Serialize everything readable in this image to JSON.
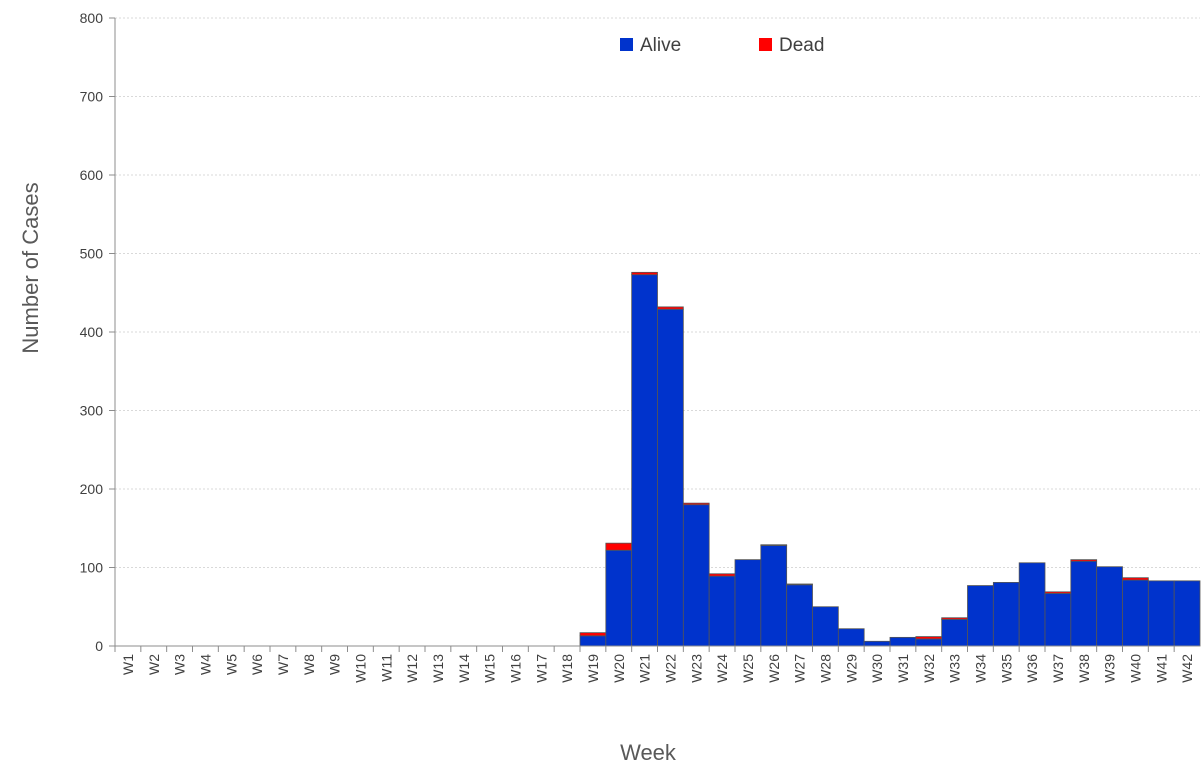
{
  "chart_data": {
    "type": "bar",
    "stacked": true,
    "title": "",
    "xlabel": "Week",
    "ylabel": "Number of Cases",
    "ylim": [
      0,
      800
    ],
    "yticks": [
      "0",
      "100",
      "200",
      "300",
      "400",
      "500",
      "600",
      "700",
      "800"
    ],
    "grid": true,
    "legend_position": "top-center",
    "categories": [
      "W1",
      "W2",
      "W3",
      "W4",
      "W5",
      "W6",
      "W7",
      "W8",
      "W9",
      "W10",
      "W11",
      "W12",
      "W13",
      "W14",
      "W15",
      "W16",
      "W17",
      "W18",
      "W19",
      "W20",
      "W21",
      "W22",
      "W23",
      "W24",
      "W25",
      "W26",
      "W27",
      "W28",
      "W29",
      "W30",
      "W31",
      "W32",
      "W33",
      "W34",
      "W35",
      "W36",
      "W37",
      "W38",
      "W39",
      "W40",
      "W41",
      "W42"
    ],
    "series": [
      {
        "name": "Alive",
        "color": "#0033cc",
        "values": [
          0,
          0,
          0,
          0,
          0,
          0,
          0,
          0,
          0,
          0,
          0,
          0,
          0,
          0,
          0,
          0,
          0,
          0,
          13,
          122,
          473,
          429,
          180,
          89,
          110,
          128,
          78,
          50,
          22,
          6,
          11,
          9,
          34,
          77,
          81,
          106,
          67,
          108,
          101,
          84,
          83,
          83
        ]
      },
      {
        "name": "Dead",
        "color": "#ff0000",
        "values": [
          0,
          0,
          0,
          0,
          0,
          0,
          0,
          0,
          0,
          0,
          0,
          0,
          0,
          0,
          0,
          0,
          0,
          0,
          4,
          9,
          3,
          3,
          2,
          3,
          0,
          1,
          1,
          0,
          0,
          0,
          0,
          3,
          2,
          0,
          0,
          0,
          2,
          2,
          0,
          3,
          0,
          0
        ]
      }
    ]
  }
}
